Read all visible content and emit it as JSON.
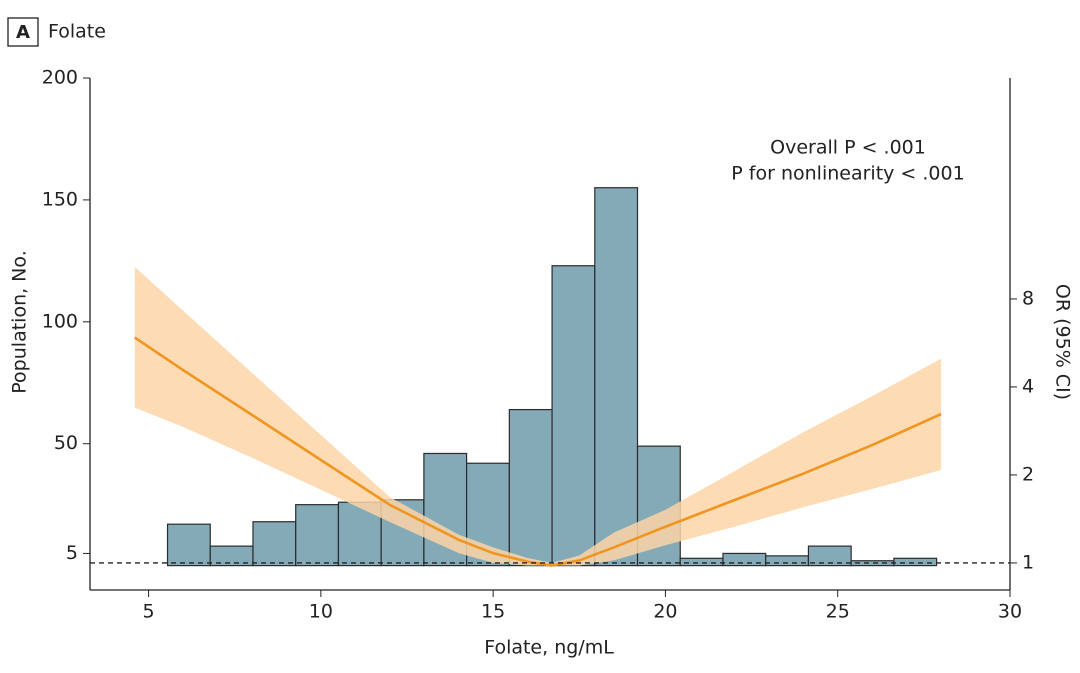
{
  "panel_label": "A",
  "chart_data": {
    "type": "histogram",
    "title": "Folate",
    "xlabel": "Folate, ng/mL",
    "ylabel": "Population, No.",
    "y2label": "OR (95% CI)",
    "annotations": [
      "Overall P < .001",
      "P for nonlinearity < .001"
    ],
    "bins": [
      5.55,
      6.79,
      8.03,
      9.27,
      10.51,
      11.75,
      12.99,
      14.23,
      15.47,
      16.71,
      17.95,
      19.19,
      20.43,
      21.67,
      22.91,
      24.15,
      25.39,
      26.63,
      27.87
    ],
    "counts": [
      17,
      8,
      18,
      25,
      26,
      27,
      46,
      42,
      64,
      123,
      155,
      49,
      3,
      5,
      4,
      8,
      2,
      3
    ],
    "color": "#84a9b7",
    "edgecolor": "#2b2b2b",
    "xlim": [
      3.3,
      30
    ],
    "xticks": [
      5,
      10,
      15,
      20,
      25,
      30
    ],
    "ylim": [
      -10,
      200
    ],
    "yticks": [
      5,
      50,
      100,
      150,
      200
    ],
    "y2lim": [
      0.808,
      45.6
    ],
    "y2scale": "log",
    "y2ticks": [
      1,
      2,
      4,
      8
    ],
    "reference_line": 1,
    "curve": {
      "type": "line",
      "axis": "y2",
      "color": "#f0951f",
      "band_color": "#fbd5a8",
      "x": [
        4.6,
        6,
        8,
        10,
        12,
        14,
        15,
        16,
        16.7,
        17.5,
        18.5,
        20,
        22,
        24,
        26,
        28
      ],
      "values": [
        5.9,
        4.57,
        3.21,
        2.25,
        1.58,
        1.2,
        1.08,
        1.01,
        0.98,
        1.02,
        1.13,
        1.33,
        1.64,
        2.02,
        2.53,
        3.23
      ],
      "upper": [
        10.3,
        7.3,
        4.47,
        2.74,
        1.68,
        1.25,
        1.13,
        1.04,
        1.0,
        1.06,
        1.27,
        1.52,
        2.06,
        2.8,
        3.72,
        5.0
      ],
      "lower": [
        3.4,
        2.92,
        2.29,
        1.78,
        1.38,
        1.08,
        1.0,
        0.98,
        0.98,
        0.98,
        1.02,
        1.15,
        1.33,
        1.55,
        1.79,
        2.08
      ]
    }
  }
}
